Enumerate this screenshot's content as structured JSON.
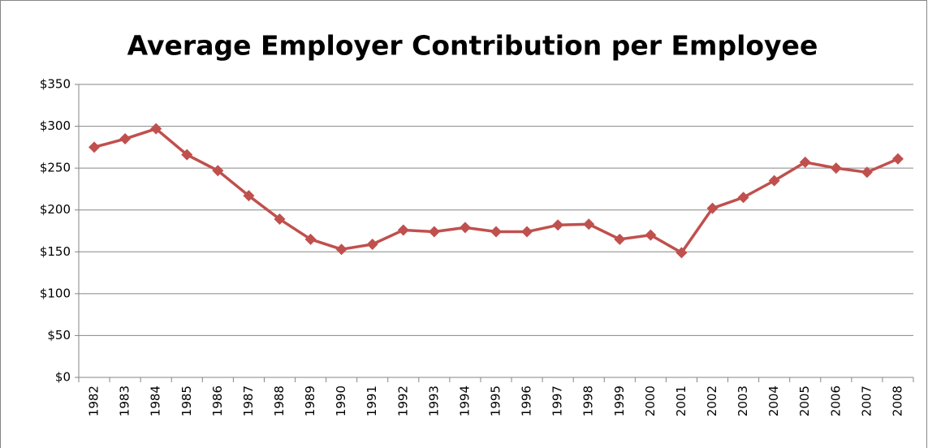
{
  "chart_data": {
    "type": "line",
    "title": "Average Employer Contribution per Employee",
    "categories": [
      "1982",
      "1983",
      "1984",
      "1985",
      "1986",
      "1987",
      "1988",
      "1989",
      "1990",
      "1991",
      "1992",
      "1993",
      "1994",
      "1995",
      "1996",
      "1997",
      "1998",
      "1999",
      "2000",
      "2001",
      "2002",
      "2003",
      "2004",
      "2005",
      "2006",
      "2007",
      "2008"
    ],
    "values": [
      275,
      285,
      297,
      266,
      247,
      217,
      189,
      165,
      153,
      159,
      176,
      174,
      179,
      174,
      174,
      182,
      183,
      165,
      170,
      149,
      202,
      215,
      235,
      257,
      250,
      245,
      261
    ],
    "color": "#c0504d",
    "ylim": [
      0,
      350
    ],
    "yticks": [
      {
        "value": 0,
        "label": "$0"
      },
      {
        "value": 50,
        "label": "$50"
      },
      {
        "value": 100,
        "label": "$100"
      },
      {
        "value": 150,
        "label": "$150"
      },
      {
        "value": 200,
        "label": "$200"
      },
      {
        "value": 250,
        "label": "$250"
      },
      {
        "value": 300,
        "label": "$300"
      },
      {
        "value": 350,
        "label": "$350"
      }
    ],
    "grid": true
  }
}
